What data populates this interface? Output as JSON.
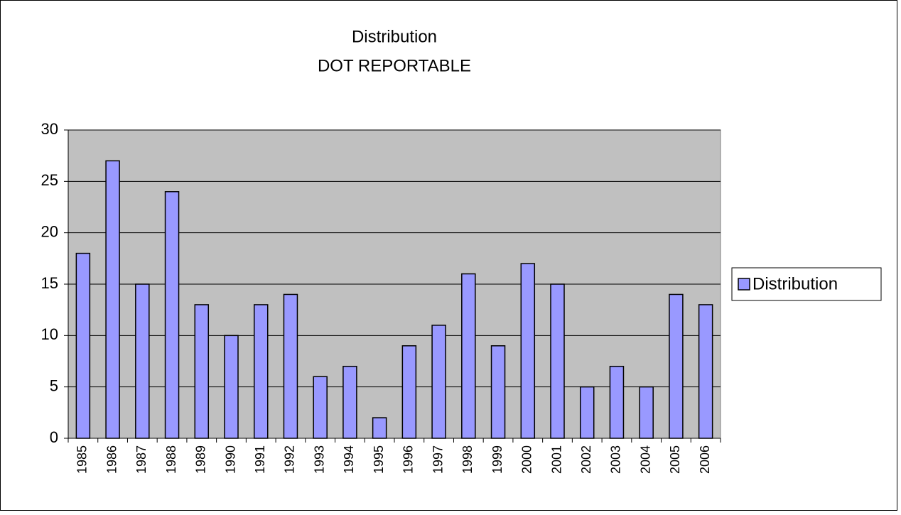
{
  "chart_data": {
    "type": "bar",
    "title": "Distribution",
    "subtitle": "DOT REPORTABLE",
    "categories": [
      "1985",
      "1986",
      "1987",
      "1988",
      "1989",
      "1990",
      "1991",
      "1992",
      "1993",
      "1994",
      "1995",
      "1996",
      "1997",
      "1998",
      "1999",
      "2000",
      "2001",
      "2002",
      "2003",
      "2004",
      "2005",
      "2006"
    ],
    "series": [
      {
        "name": "Distribution",
        "color": "#9999ff",
        "values": [
          18,
          27,
          15,
          24,
          13,
          10,
          13,
          14,
          6,
          7,
          2,
          9,
          11,
          16,
          9,
          17,
          15,
          5,
          7,
          5,
          14,
          13
        ]
      }
    ],
    "ylim": [
      0,
      30
    ],
    "yticks": [
      0,
      5,
      10,
      15,
      20,
      25,
      30
    ],
    "grid": true,
    "legend": "right"
  }
}
